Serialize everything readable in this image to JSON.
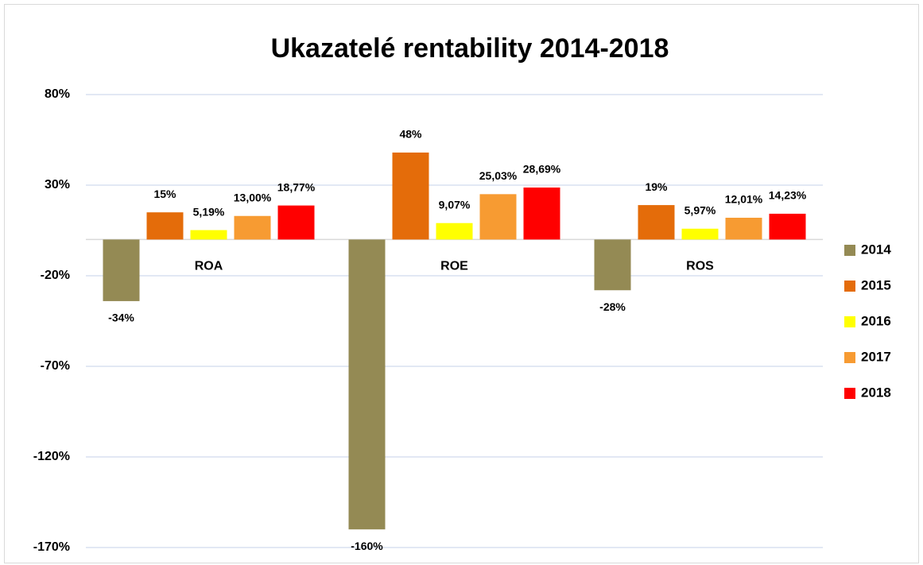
{
  "chart_data": {
    "type": "bar",
    "title": "Ukazatelé rentability 2014-2018",
    "categories": [
      "ROA",
      "ROE",
      "ROS"
    ],
    "series": [
      {
        "name": "2014",
        "color": "#948a54",
        "values": [
          -34,
          -160,
          -28
        ],
        "value_labels": [
          "-34%",
          "-160%",
          "-28%"
        ]
      },
      {
        "name": "2015",
        "color": "#e46c0a",
        "values": [
          15,
          48,
          19
        ],
        "value_labels": [
          "15%",
          "48%",
          "19%"
        ]
      },
      {
        "name": "2016",
        "color": "#ffff00",
        "values": [
          5.19,
          9.07,
          5.97
        ],
        "value_labels": [
          "5,19%",
          "9,07%",
          "5,97%"
        ]
      },
      {
        "name": "2017",
        "color": "#f79b32",
        "values": [
          13.0,
          25.03,
          12.01
        ],
        "value_labels": [
          "13,00%",
          "25,03%",
          "12,01%"
        ]
      },
      {
        "name": "2018",
        "color": "#ff0000",
        "values": [
          18.77,
          28.69,
          14.23
        ],
        "value_labels": [
          "18,77%",
          "28,69%",
          "14,23%"
        ]
      }
    ],
    "ylim": [
      -170,
      80
    ],
    "yticks": [
      {
        "value": -170,
        "label": "-170%"
      },
      {
        "value": -120,
        "label": "-120%"
      },
      {
        "value": -70,
        "label": "-70%"
      },
      {
        "value": -20,
        "label": "-20%"
      },
      {
        "value": 30,
        "label": "30%"
      },
      {
        "value": 80,
        "label": "80%"
      }
    ],
    "grid": true,
    "legend": "right"
  }
}
